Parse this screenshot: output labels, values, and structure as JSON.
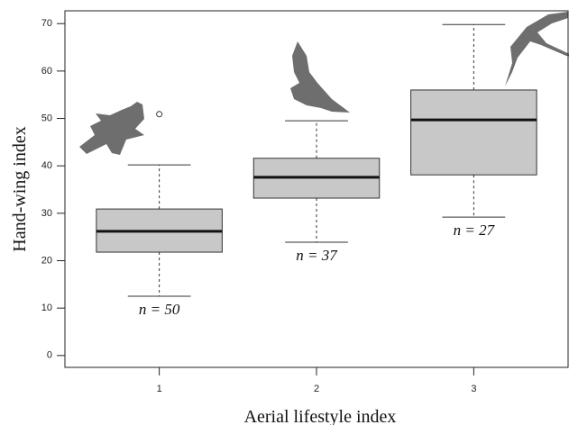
{
  "chart_data": {
    "type": "box",
    "xlabel": "Aerial lifestyle index",
    "ylabel": "Hand-wing index",
    "x": [
      1,
      2,
      3
    ],
    "xlim": [
      0.4,
      3.6
    ],
    "xticks": [
      1,
      2,
      3
    ],
    "ylim": [
      -2.5,
      72.7
    ],
    "yticks": [
      0,
      10,
      20,
      30,
      40,
      50,
      60,
      70
    ],
    "color": "#c8c8c8",
    "boxes": [
      {
        "min": 12.5,
        "q1": 21.8,
        "median": 26.2,
        "q3": 30.9,
        "max": 40.2,
        "outliers": [
          50.9
        ]
      },
      {
        "min": 23.9,
        "q1": 33.2,
        "median": 37.6,
        "q3": 41.6,
        "max": 49.5,
        "outliers": []
      },
      {
        "min": 29.2,
        "q1": 38.1,
        "median": 49.7,
        "q3": 56.0,
        "max": 69.8,
        "outliers": []
      }
    ],
    "annotations": [
      "n = 50",
      "n = 37",
      "n = 27"
    ]
  }
}
